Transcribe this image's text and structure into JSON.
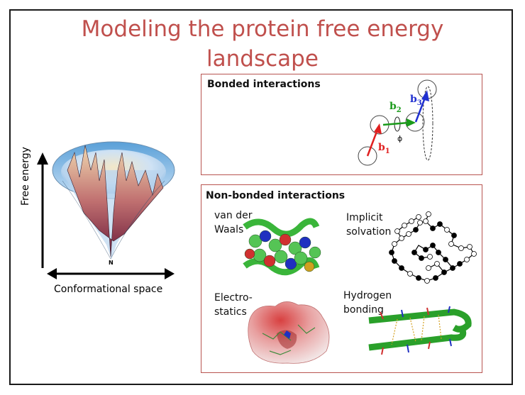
{
  "title_line1": "Modeling the protein free energy",
  "title_line2": "landscape",
  "landscape": {
    "y_axis_label": "Free energy",
    "x_axis_label": "Conformational space",
    "funnel_bottom_label": "N"
  },
  "bonded": {
    "heading": "Bonded interactions",
    "labels": {
      "b1": "b",
      "b1_sub": "1",
      "b2": "b",
      "b2_sub": "2",
      "b3": "b",
      "b3_sub": "3",
      "phi": "ϕ"
    },
    "colors": {
      "b1": "#e02020",
      "b2": "#1a9a1a",
      "b3": "#2030d0"
    }
  },
  "nonbonded": {
    "heading": "Non-bonded interactions",
    "vdw_line1": "van der",
    "vdw_line2": "Waals",
    "implicit_line1": "Implicit",
    "implicit_line2": "solvation",
    "elec_line1": "Electro-",
    "elec_line2": "statics",
    "hbond_line1": "Hydrogen",
    "hbond_line2": "bonding"
  },
  "colors": {
    "title": "#c0504d",
    "panel_border": "#b85450"
  }
}
